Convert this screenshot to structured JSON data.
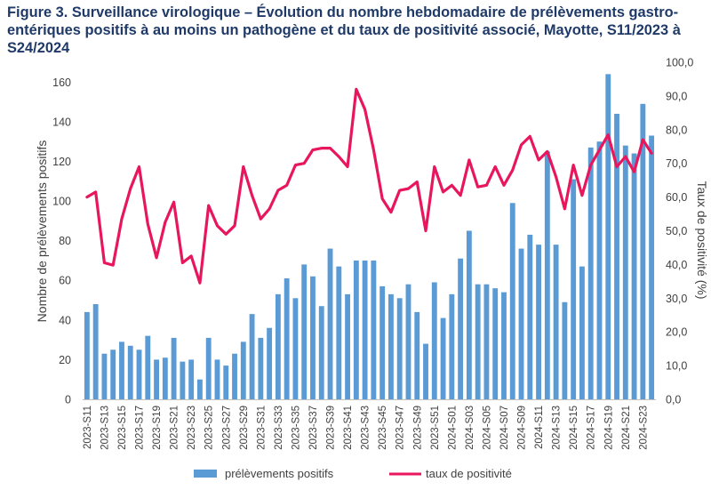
{
  "chart_data": {
    "type": "bar",
    "title": "Figure 3. Surveillance virologique – Évolution du nombre hebdomadaire de prélèvements gastro-entériques positifs à au moins un pathogène et du taux de positivité associé, Mayotte, S11/2023 à S24/2024",
    "categories": [
      "2023-S11",
      "2023-S12",
      "2023-S13",
      "2023-S14",
      "2023-S15",
      "2023-S16",
      "2023-S17",
      "2023-S18",
      "2023-S19",
      "2023-S20",
      "2023-S21",
      "2023-S22",
      "2023-S23",
      "2023-S24",
      "2023-S25",
      "2023-S26",
      "2023-S27",
      "2023-S28",
      "2023-S29",
      "2023-S30",
      "2023-S31",
      "2023-S32",
      "2023-S33",
      "2023-S34",
      "2023-S35",
      "2023-S36",
      "2023-S37",
      "2023-S38",
      "2023-S39",
      "2023-S40",
      "2023-S41",
      "2023-S42",
      "2023-S43",
      "2023-S44",
      "2023-S45",
      "2023-S46",
      "2023-S47",
      "2023-S48",
      "2023-S49",
      "2023-S50",
      "2023-S51",
      "2023-S52",
      "2024-S01",
      "2024-S02",
      "2024-S03",
      "2024-S04",
      "2024-S05",
      "2024-S06",
      "2024-S07",
      "2024-S08",
      "2024-S09",
      "2024-S10",
      "2024-S11",
      "2024-S12",
      "2024-S13",
      "2024-S14",
      "2024-S15",
      "2024-S16",
      "2024-S17",
      "2024-S18",
      "2024-S19",
      "2024-S20",
      "2024-S21",
      "2024-S22",
      "2024-S23",
      "2024-S24"
    ],
    "category_labels_shown_every": 2,
    "series": [
      {
        "name": "prélèvements positifs",
        "type": "bar",
        "axis": "left",
        "color": "#5b9bd5",
        "values": [
          44,
          48,
          23,
          25,
          29,
          27,
          25,
          32,
          20,
          21,
          31,
          19,
          20,
          10,
          31,
          20,
          17,
          23,
          29,
          43,
          31,
          36,
          53,
          61,
          51,
          68,
          62,
          47,
          76,
          67,
          53,
          70,
          70,
          70,
          57,
          53,
          51,
          58,
          44,
          28,
          59,
          41,
          53,
          71,
          85,
          58,
          58,
          56,
          54,
          99,
          76,
          83,
          78,
          125,
          78,
          49,
          111,
          67,
          127,
          130,
          164,
          144,
          128,
          124,
          149,
          133
        ]
      },
      {
        "name": "taux de positivité",
        "type": "line",
        "axis": "right",
        "color": "#e8175d",
        "values": [
          60.0,
          61.5,
          40.5,
          39.8,
          53.5,
          62.5,
          69.0,
          52.0,
          42.0,
          52.5,
          58.5,
          40.5,
          42.5,
          34.5,
          57.5,
          51.5,
          49.0,
          51.5,
          69.0,
          60.5,
          53.5,
          56.5,
          62.0,
          63.5,
          69.5,
          70.0,
          74.0,
          74.5,
          74.5,
          72.0,
          69.0,
          92.0,
          86.0,
          74.0,
          59.5,
          55.5,
          62.0,
          62.5,
          64.5,
          50.0,
          69.0,
          61.5,
          63.5,
          60.5,
          71.0,
          63.0,
          63.5,
          69.0,
          63.5,
          68.0,
          75.5,
          78.0,
          71.0,
          73.5,
          66.0,
          56.5,
          69.5,
          60.5,
          69.5,
          74.0,
          78.5,
          69.0,
          72.0,
          67.5,
          77.0,
          73.0
        ]
      }
    ],
    "left_axis": {
      "label": "Nombre de prélèvements positifs",
      "min": 0,
      "max": 170,
      "ticks": [
        0,
        20,
        40,
        60,
        80,
        100,
        120,
        140,
        160
      ],
      "tick_labels": [
        "0",
        "20",
        "40",
        "60",
        "80",
        "100",
        "120",
        "140",
        "160"
      ]
    },
    "right_axis": {
      "label": "Taux de positivité (%)",
      "min": 0,
      "max": 100,
      "ticks": [
        0,
        10,
        20,
        30,
        40,
        50,
        60,
        70,
        80,
        90,
        100
      ],
      "tick_labels": [
        "0,0",
        "10,0",
        "20,0",
        "30,0",
        "40,0",
        "50,0",
        "60,0",
        "70,0",
        "80,0",
        "90,0",
        "100,0"
      ]
    },
    "grid": false,
    "legend": "bottom-center",
    "legend_entries": [
      "prélèvements positifs",
      "taux de positivité"
    ]
  }
}
